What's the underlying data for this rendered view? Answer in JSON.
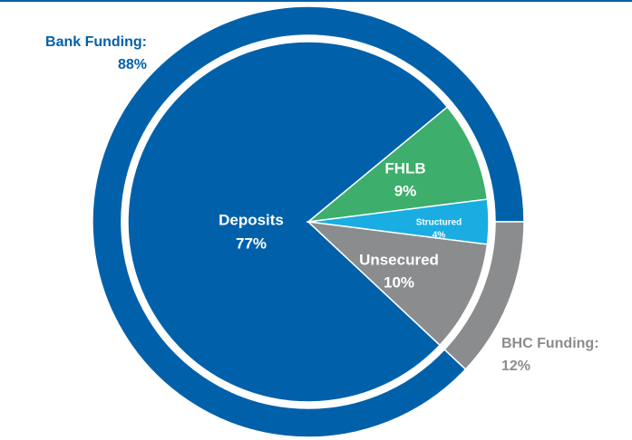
{
  "chart_data": {
    "type": "nested-pie",
    "outer": {
      "categories": [
        "Bank Funding:",
        "BHC Funding:"
      ],
      "values": [
        88,
        12
      ],
      "value_labels": [
        "88%",
        "12%"
      ],
      "colors": [
        "#0061aa",
        "#8a8c8e"
      ]
    },
    "inner": {
      "categories": [
        "Deposits",
        "FHLB",
        "Structured",
        "Unsecured"
      ],
      "values": [
        77,
        9,
        4,
        10
      ],
      "value_labels": [
        "77%",
        "9%",
        "4%",
        "10%"
      ],
      "colors": [
        "#0061aa",
        "#3dae6b",
        "#19ade2",
        "#8a8c8e"
      ]
    }
  }
}
